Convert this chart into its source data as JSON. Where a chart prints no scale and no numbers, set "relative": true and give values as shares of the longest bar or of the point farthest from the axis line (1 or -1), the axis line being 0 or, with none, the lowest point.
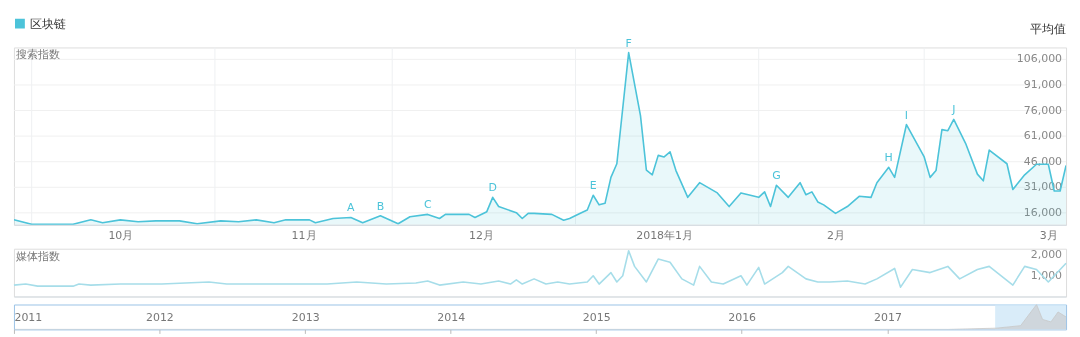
{
  "chart_data": [
    {
      "type": "area",
      "ylabel": "搜索指数",
      "legend": "top left",
      "grid": true,
      "marker": "none",
      "x": [
        "2017-09-28",
        "2017-10-01",
        "2017-10-08",
        "2017-10-11",
        "2017-10-13",
        "2017-10-16",
        "2017-10-19",
        "2017-10-22",
        "2017-10-26",
        "2017-10-29",
        "2017-11-02",
        "2017-11-05",
        "2017-11-08",
        "2017-11-11",
        "2017-11-13",
        "2017-11-17",
        "2017-11-18",
        "2017-11-21",
        "2017-11-24",
        "2017-11-26",
        "2017-11-29",
        "2017-12-02",
        "2017-12-04",
        "2017-12-07",
        "2017-12-09",
        "2017-12-10",
        "2017-12-14",
        "2017-12-15",
        "2017-12-17",
        "2017-12-18",
        "2017-12-19",
        "2017-12-22",
        "2017-12-23",
        "2017-12-24",
        "2017-12-25",
        "2017-12-28",
        "2017-12-30",
        "2017-12-31",
        "2018-01-02",
        "2018-01-03",
        "2018-01-04",
        "2018-01-05",
        "2018-01-06",
        "2018-01-07",
        "2018-01-08",
        "2018-01-10",
        "2018-01-12",
        "2018-01-13",
        "2018-01-14",
        "2018-01-15",
        "2018-01-16",
        "2018-01-17",
        "2018-01-18",
        "2018-01-20",
        "2018-01-22",
        "2018-01-25",
        "2018-01-27",
        "2018-01-29",
        "2018-02-01",
        "2018-02-02",
        "2018-02-03",
        "2018-02-04",
        "2018-02-06",
        "2018-02-08",
        "2018-02-09",
        "2018-02-10",
        "2018-02-11",
        "2018-02-12",
        "2018-02-14",
        "2018-02-16",
        "2018-02-18",
        "2018-02-20",
        "2018-02-21",
        "2018-02-23",
        "2018-02-24",
        "2018-02-26",
        "2018-03-01",
        "2018-03-02",
        "2018-03-03",
        "2018-03-04",
        "2018-03-05",
        "2018-03-06",
        "2018-03-08",
        "2018-03-10",
        "2018-03-11",
        "2018-03-12",
        "2018-03-15",
        "2018-03-16",
        "2018-03-18",
        "2018-03-20",
        "2018-03-22",
        "2018-03-23",
        "2018-03-24",
        "2018-03-25"
      ],
      "series": [
        {
          "name": "区块链",
          "color": "#4cc3d9",
          "values": [
            11900,
            9300,
            9300,
            11900,
            10200,
            11900,
            10800,
            11300,
            11300,
            9600,
            11300,
            10800,
            11900,
            10200,
            11900,
            11900,
            10200,
            12700,
            13300,
            10200,
            14300,
            9600,
            13700,
            15100,
            12700,
            15100,
            15100,
            13300,
            16700,
            25100,
            19700,
            16100,
            12700,
            15700,
            15700,
            15100,
            11700,
            12700,
            16100,
            17700,
            26300,
            20700,
            21600,
            36800,
            44800,
            110000,
            73000,
            41000,
            38300,
            49700,
            48800,
            51800,
            40800,
            25100,
            33700,
            27700,
            19700,
            27700,
            25100,
            28300,
            19700,
            32200,
            25100,
            33700,
            26600,
            28300,
            22400,
            20700,
            15700,
            19700,
            25700,
            25100,
            33700,
            42700,
            36800,
            67800,
            48800,
            36800,
            40800,
            64800,
            64200,
            70800,
            56800,
            38700,
            34800,
            52800,
            44800,
            29700,
            38300,
            44500,
            44500,
            28800,
            28800,
            43800
          ]
        }
      ],
      "xlim": [
        "2017-09-28",
        "2018-03-25"
      ],
      "xticks": [
        {
          "value": "2017-10-01",
          "label": null
        },
        {
          "value": "2017-10-16",
          "label": "10月"
        },
        {
          "value": "2017-11-01",
          "label": null
        },
        {
          "value": "2017-11-16",
          "label": "11月"
        },
        {
          "value": "2017-12-01",
          "label": null
        },
        {
          "value": "2017-12-16",
          "label": "12月"
        },
        {
          "value": "2018-01-01",
          "label": null
        },
        {
          "value": "2018-01-16",
          "label": "2018年1月"
        },
        {
          "value": "2018-02-01",
          "label": null
        },
        {
          "value": "2018-02-14",
          "label": "2月"
        },
        {
          "value": "2018-03-01",
          "label": null
        },
        {
          "value": "2018-03-22",
          "label": "3月"
        }
      ],
      "ylim": [
        9000,
        113000
      ],
      "yticks": [
        {
          "value": 16000,
          "label": "16,000"
        },
        {
          "value": 31000,
          "label": "31,000"
        },
        {
          "value": 46000,
          "label": "46,000"
        },
        {
          "value": 61000,
          "label": "61,000"
        },
        {
          "value": 76000,
          "label": "76,000"
        },
        {
          "value": 91000,
          "label": "91,000"
        },
        {
          "value": 106000,
          "label": "106,000"
        }
      ],
      "annotations": [
        {
          "text": "A",
          "x": "2017-11-24",
          "y": 13300
        },
        {
          "text": "B",
          "x": "2017-11-29",
          "y": 14300
        },
        {
          "text": "C",
          "x": "2017-12-07",
          "y": 15100
        },
        {
          "text": "D",
          "x": "2017-12-18",
          "y": 25100
        },
        {
          "text": "E",
          "x": "2018-01-04",
          "y": 26300
        },
        {
          "text": "F",
          "x": "2018-01-10",
          "y": 110000
        },
        {
          "text": "G",
          "x": "2018-02-04",
          "y": 32200
        },
        {
          "text": "H",
          "x": "2018-02-23",
          "y": 42700
        },
        {
          "text": "I",
          "x": "2018-02-26",
          "y": 67800
        },
        {
          "text": "J",
          "x": "2018-03-06",
          "y": 70800
        },
        "平均值"
      ]
    },
    {
      "type": "line",
      "ylabel": "媒体指数",
      "tick_labels": "y",
      "marker": "none",
      "x": [
        "2017-09-28",
        "2017-09-30",
        "2017-10-02",
        "2017-10-08",
        "2017-10-09",
        "2017-10-11",
        "2017-10-16",
        "2017-10-23",
        "2017-10-31",
        "2017-11-03",
        "2017-11-12",
        "2017-11-20",
        "2017-11-25",
        "2017-11-30",
        "2017-12-05",
        "2017-12-07",
        "2017-12-09",
        "2017-12-13",
        "2017-12-16",
        "2017-12-19",
        "2017-12-21",
        "2017-12-22",
        "2017-12-23",
        "2017-12-25",
        "2017-12-27",
        "2017-12-29",
        "2017-12-31",
        "2018-01-03",
        "2018-01-04",
        "2018-01-05",
        "2018-01-07",
        "2018-01-08",
        "2018-01-09",
        "2018-01-10",
        "2018-01-11",
        "2018-01-13",
        "2018-01-15",
        "2018-01-17",
        "2018-01-19",
        "2018-01-21",
        "2018-01-22",
        "2018-01-24",
        "2018-01-26",
        "2018-01-29",
        "2018-01-30",
        "2018-02-01",
        "2018-02-02",
        "2018-02-05",
        "2018-02-06",
        "2018-02-09",
        "2018-02-11",
        "2018-02-13",
        "2018-02-16",
        "2018-02-19",
        "2018-02-21",
        "2018-02-24",
        "2018-02-25",
        "2018-02-27",
        "2018-03-02",
        "2018-03-05",
        "2018-03-07",
        "2018-03-10",
        "2018-03-12",
        "2018-03-16",
        "2018-03-18",
        "2018-03-20",
        "2018-03-22",
        "2018-03-25"
      ],
      "series": [
        {
          "color": "#a6dde9",
          "values": [
            550,
            600,
            500,
            500,
            600,
            550,
            600,
            600,
            700,
            600,
            600,
            600,
            700,
            600,
            650,
            750,
            550,
            700,
            600,
            750,
            600,
            800,
            600,
            850,
            600,
            700,
            600,
            700,
            1000,
            600,
            1150,
            700,
            1000,
            2200,
            1450,
            700,
            1800,
            1650,
            850,
            550,
            1450,
            700,
            600,
            1000,
            550,
            1400,
            600,
            1150,
            1450,
            850,
            700,
            700,
            750,
            600,
            850,
            1350,
            450,
            1300,
            1150,
            1450,
            850,
            1300,
            1450,
            550,
            1450,
            1300,
            700,
            1600
          ]
        }
      ],
      "xlim": [
        "2017-09-28",
        "2018-03-25"
      ],
      "ylim": [
        0,
        2300
      ],
      "yticks": [
        {
          "value": 1000,
          "label": "1,000"
        },
        {
          "value": 2000,
          "label": "2,000"
        }
      ]
    },
    {
      "type": "area",
      "relative": true,
      "tick_labels": "x",
      "x": [
        "2011-01-01",
        "2017-06-01",
        "2017-10-01",
        "2017-12-01",
        "2018-01-10",
        "2018-01-25",
        "2018-02-15",
        "2018-03-05",
        "2018-03-25"
      ],
      "series": [
        {
          "color": "#c8c8c8",
          "values": [
            0,
            0,
            0.05,
            0.15,
            1,
            0.4,
            0.3,
            0.7,
            0.5
          ]
        }
      ],
      "xlim": [
        "2011-01-01",
        "2018-03-25"
      ],
      "xticks": [
        "2011",
        "2012",
        "2013",
        "2014",
        "2015",
        "2016",
        "2017"
      ],
      "bands": [
        {
          "axis": "x",
          "from": "2017-09-28",
          "to": "2018-03-25",
          "color": "#cfe7f7"
        }
      ]
    }
  ]
}
